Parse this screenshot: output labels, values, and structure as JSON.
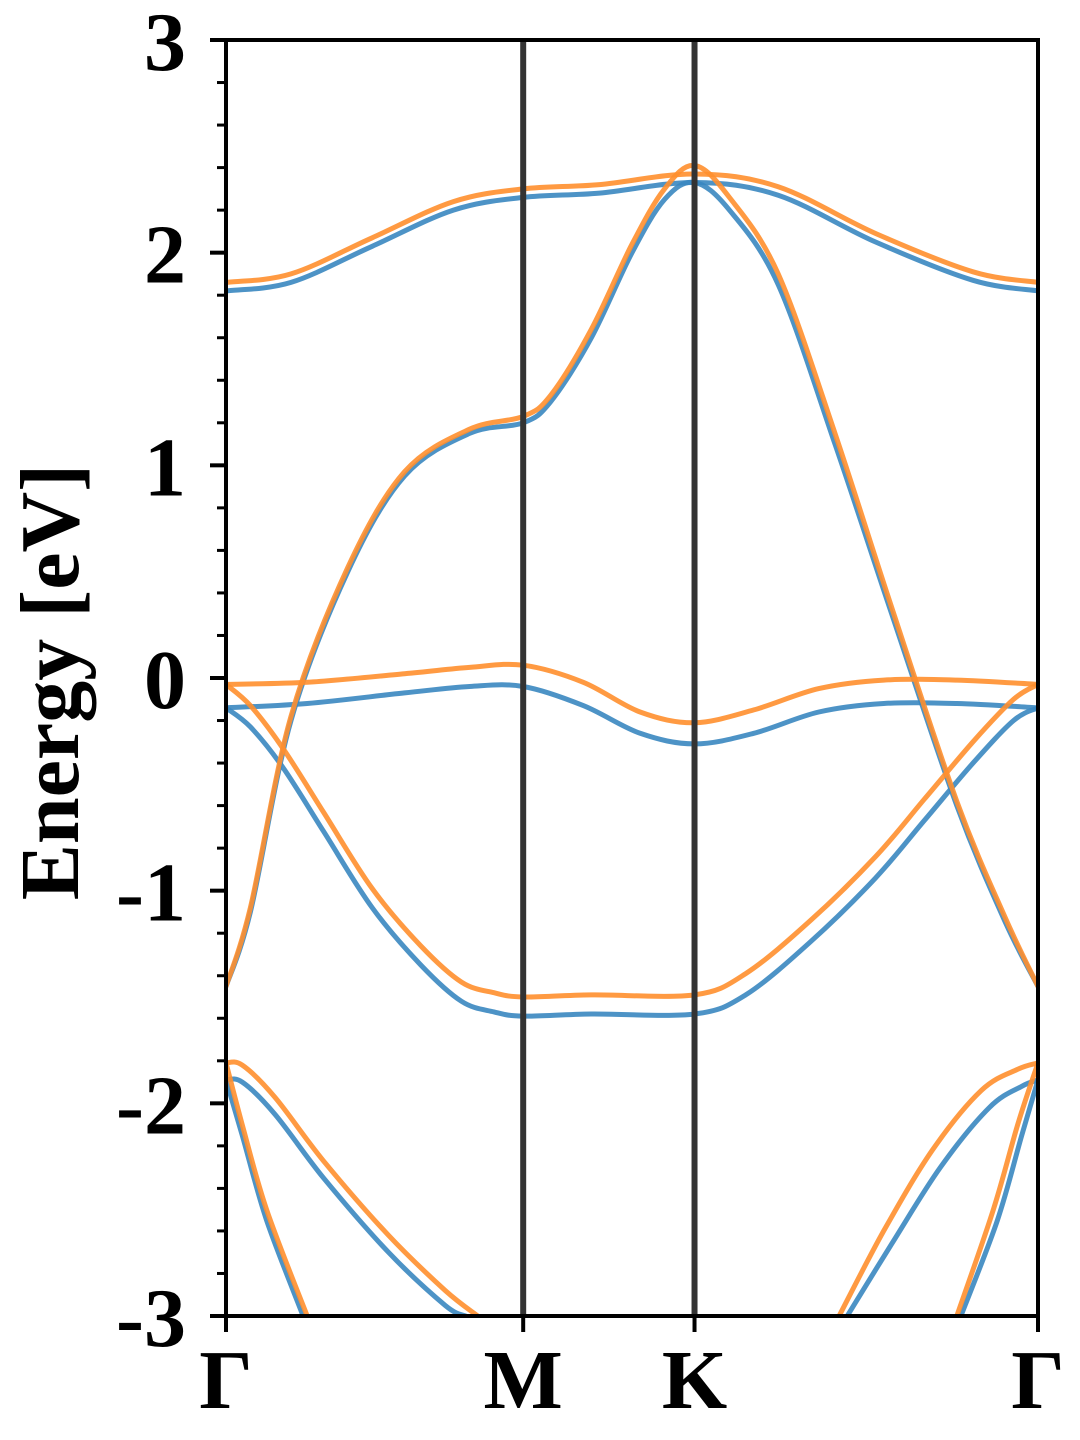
{
  "chart_data": {
    "type": "line",
    "title": "",
    "xlabel": "",
    "ylabel": "Energy [eV]",
    "ylim": [
      -3,
      3
    ],
    "yticks": [
      -3,
      -2,
      -1,
      0,
      1,
      2,
      3
    ],
    "ytick_labels": [
      "-3",
      "-2",
      "-1",
      "0",
      "1",
      "2",
      "3"
    ],
    "y_minor_step": 0.2,
    "grid": false,
    "legend": "none",
    "high_symmetry_points": [
      {
        "label": "Γ",
        "x": 0
      },
      {
        "label": "M",
        "x": 0.366
      },
      {
        "label": "K",
        "x": 0.577
      },
      {
        "label": "Γ",
        "x": 1
      }
    ],
    "vertical_lines_at": [
      0.366,
      0.577
    ],
    "colors": {
      "series_a": "#3a87c0",
      "series_b": "#ff8f2e",
      "divider": "#333333",
      "axes": "#000000"
    },
    "series": [
      {
        "group": "a",
        "color": "#3a87c0",
        "points": [
          [
            0,
            1.82
          ],
          [
            0.08,
            1.86
          ],
          [
            0.18,
            2.03
          ],
          [
            0.28,
            2.2
          ],
          [
            0.366,
            2.26
          ],
          [
            0.46,
            2.28
          ],
          [
            0.577,
            2.33
          ],
          [
            0.68,
            2.27
          ],
          [
            0.8,
            2.05
          ],
          [
            0.92,
            1.87
          ],
          [
            1,
            1.82
          ]
        ]
      },
      {
        "group": "a",
        "color": "#3a87c0",
        "points": [
          [
            0,
            -1.45
          ],
          [
            0.03,
            -1.1
          ],
          [
            0.08,
            -0.2
          ],
          [
            0.15,
            0.5
          ],
          [
            0.22,
            0.95
          ],
          [
            0.3,
            1.15
          ],
          [
            0.366,
            1.2
          ],
          [
            0.4,
            1.3
          ],
          [
            0.45,
            1.6
          ],
          [
            0.5,
            2.0
          ],
          [
            0.54,
            2.25
          ],
          [
            0.577,
            2.33
          ],
          [
            0.62,
            2.2
          ],
          [
            0.68,
            1.85
          ],
          [
            0.75,
            1.1
          ],
          [
            0.82,
            0.3
          ],
          [
            0.9,
            -0.6
          ],
          [
            0.96,
            -1.15
          ],
          [
            1,
            -1.45
          ]
        ]
      },
      {
        "group": "a",
        "color": "#3a87c0",
        "points": [
          [
            0,
            -0.14
          ],
          [
            0.1,
            -0.12
          ],
          [
            0.22,
            -0.07
          ],
          [
            0.3,
            -0.04
          ],
          [
            0.366,
            -0.04
          ],
          [
            0.44,
            -0.13
          ],
          [
            0.51,
            -0.26
          ],
          [
            0.577,
            -0.31
          ],
          [
            0.65,
            -0.26
          ],
          [
            0.73,
            -0.16
          ],
          [
            0.81,
            -0.12
          ],
          [
            0.9,
            -0.12
          ],
          [
            1,
            -0.14
          ]
        ]
      },
      {
        "group": "a",
        "color": "#3a87c0",
        "points": [
          [
            0,
            -0.14
          ],
          [
            0.03,
            -0.23
          ],
          [
            0.07,
            -0.42
          ],
          [
            0.12,
            -0.72
          ],
          [
            0.18,
            -1.08
          ],
          [
            0.24,
            -1.35
          ],
          [
            0.29,
            -1.52
          ],
          [
            0.33,
            -1.57
          ],
          [
            0.366,
            -1.59
          ],
          [
            0.45,
            -1.58
          ],
          [
            0.577,
            -1.58
          ],
          [
            0.64,
            -1.49
          ],
          [
            0.72,
            -1.24
          ],
          [
            0.8,
            -0.94
          ],
          [
            0.86,
            -0.67
          ],
          [
            0.92,
            -0.4
          ],
          [
            0.97,
            -0.2
          ],
          [
            1,
            -0.14
          ]
        ]
      },
      {
        "group": "a",
        "color": "#3a87c0",
        "points": [
          [
            0,
            -1.89
          ],
          [
            0.02,
            -1.9
          ],
          [
            0.06,
            -2.05
          ],
          [
            0.12,
            -2.35
          ],
          [
            0.2,
            -2.7
          ],
          [
            0.27,
            -2.95
          ],
          [
            0.295,
            -3
          ]
        ]
      },
      {
        "group": "a",
        "color": "#3a87c0",
        "points": [
          [
            0,
            -1.89
          ],
          [
            0.02,
            -2.15
          ],
          [
            0.05,
            -2.55
          ],
          [
            0.095,
            -3
          ]
        ]
      },
      {
        "group": "a",
        "color": "#3a87c0",
        "points": [
          [
            0.765,
            -3
          ],
          [
            0.82,
            -2.66
          ],
          [
            0.88,
            -2.3
          ],
          [
            0.94,
            -2.02
          ],
          [
            0.98,
            -1.92
          ],
          [
            1,
            -1.89
          ]
        ]
      },
      {
        "group": "a",
        "color": "#3a87c0",
        "points": [
          [
            0.905,
            -3
          ],
          [
            0.95,
            -2.55
          ],
          [
            0.98,
            -2.15
          ],
          [
            1,
            -1.89
          ]
        ]
      },
      {
        "group": "b",
        "color": "#ff8f2e",
        "points": [
          [
            0,
            1.86
          ],
          [
            0.08,
            1.9
          ],
          [
            0.18,
            2.07
          ],
          [
            0.28,
            2.24
          ],
          [
            0.366,
            2.3
          ],
          [
            0.46,
            2.32
          ],
          [
            0.577,
            2.37
          ],
          [
            0.68,
            2.31
          ],
          [
            0.8,
            2.09
          ],
          [
            0.92,
            1.91
          ],
          [
            1,
            1.86
          ]
        ]
      },
      {
        "group": "b",
        "color": "#ff8f2e",
        "points": [
          [
            0,
            -1.45
          ],
          [
            0.03,
            -1.08
          ],
          [
            0.08,
            -0.18
          ],
          [
            0.15,
            0.52
          ],
          [
            0.22,
            0.97
          ],
          [
            0.3,
            1.17
          ],
          [
            0.366,
            1.23
          ],
          [
            0.4,
            1.33
          ],
          [
            0.45,
            1.64
          ],
          [
            0.5,
            2.04
          ],
          [
            0.54,
            2.3
          ],
          [
            0.577,
            2.41
          ],
          [
            0.62,
            2.26
          ],
          [
            0.68,
            1.9
          ],
          [
            0.75,
            1.15
          ],
          [
            0.82,
            0.33
          ],
          [
            0.9,
            -0.58
          ],
          [
            0.96,
            -1.13
          ],
          [
            1,
            -1.45
          ]
        ]
      },
      {
        "group": "b",
        "color": "#ff8f2e",
        "points": [
          [
            0,
            -0.03
          ],
          [
            0.1,
            -0.02
          ],
          [
            0.22,
            0.02
          ],
          [
            0.3,
            0.05
          ],
          [
            0.366,
            0.06
          ],
          [
            0.44,
            -0.02
          ],
          [
            0.51,
            -0.16
          ],
          [
            0.577,
            -0.21
          ],
          [
            0.65,
            -0.15
          ],
          [
            0.73,
            -0.05
          ],
          [
            0.81,
            -0.01
          ],
          [
            0.9,
            -0.01
          ],
          [
            1,
            -0.03
          ]
        ]
      },
      {
        "group": "b",
        "color": "#ff8f2e",
        "points": [
          [
            0,
            -0.03
          ],
          [
            0.03,
            -0.13
          ],
          [
            0.07,
            -0.33
          ],
          [
            0.12,
            -0.63
          ],
          [
            0.18,
            -0.99
          ],
          [
            0.24,
            -1.26
          ],
          [
            0.29,
            -1.43
          ],
          [
            0.33,
            -1.48
          ],
          [
            0.366,
            -1.5
          ],
          [
            0.45,
            -1.49
          ],
          [
            0.577,
            -1.49
          ],
          [
            0.64,
            -1.39
          ],
          [
            0.72,
            -1.14
          ],
          [
            0.8,
            -0.84
          ],
          [
            0.86,
            -0.57
          ],
          [
            0.92,
            -0.3
          ],
          [
            0.97,
            -0.1
          ],
          [
            1,
            -0.03
          ]
        ]
      },
      {
        "group": "b",
        "color": "#ff8f2e",
        "points": [
          [
            0,
            -1.81
          ],
          [
            0.02,
            -1.82
          ],
          [
            0.06,
            -1.97
          ],
          [
            0.12,
            -2.27
          ],
          [
            0.2,
            -2.62
          ],
          [
            0.27,
            -2.88
          ],
          [
            0.31,
            -3
          ]
        ]
      },
      {
        "group": "b",
        "color": "#ff8f2e",
        "points": [
          [
            0,
            -1.81
          ],
          [
            0.02,
            -2.1
          ],
          [
            0.05,
            -2.5
          ],
          [
            0.1,
            -3
          ]
        ]
      },
      {
        "group": "b",
        "color": "#ff8f2e",
        "points": [
          [
            0.755,
            -3
          ],
          [
            0.81,
            -2.6
          ],
          [
            0.87,
            -2.22
          ],
          [
            0.93,
            -1.94
          ],
          [
            0.975,
            -1.84
          ],
          [
            1,
            -1.81
          ]
        ]
      },
      {
        "group": "b",
        "color": "#ff8f2e",
        "points": [
          [
            0.9,
            -3
          ],
          [
            0.945,
            -2.5
          ],
          [
            0.975,
            -2.1
          ],
          [
            1,
            -1.81
          ]
        ]
      }
    ]
  }
}
